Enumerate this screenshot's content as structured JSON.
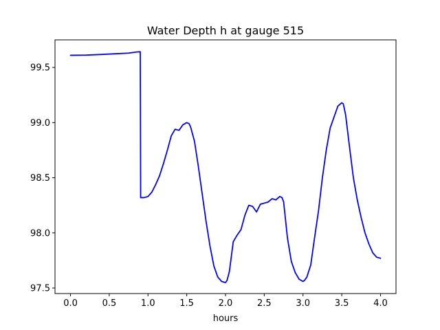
{
  "chart_data": {
    "type": "line",
    "title": "Water Depth h at gauge 515",
    "xlabel": "hours",
    "ylabel": "",
    "xlim": [
      -0.2,
      4.2
    ],
    "ylim": [
      97.45,
      99.75
    ],
    "xticks": [
      0.0,
      0.5,
      1.0,
      1.5,
      2.0,
      2.5,
      3.0,
      3.5,
      4.0
    ],
    "xtick_labels": [
      "0.0",
      "0.5",
      "1.0",
      "1.5",
      "2.0",
      "2.5",
      "3.0",
      "3.5",
      "4.0"
    ],
    "yticks": [
      97.5,
      98.0,
      98.5,
      99.0,
      99.5
    ],
    "ytick_labels": [
      "97.5",
      "98.0",
      "98.5",
      "99.0",
      "99.5"
    ],
    "grid": false,
    "series": [
      {
        "color": "#0000ff",
        "x": [
          0.0,
          0.2,
          0.4,
          0.6,
          0.75,
          0.85,
          0.9,
          0.905,
          0.95,
          1.0,
          1.05,
          1.1,
          1.15,
          1.2,
          1.25,
          1.3,
          1.35,
          1.4,
          1.45,
          1.5,
          1.53,
          1.55,
          1.6,
          1.65,
          1.7,
          1.75,
          1.8,
          1.85,
          1.9,
          1.95,
          2.0,
          2.02,
          2.05,
          2.1,
          2.15,
          2.2,
          2.25,
          2.3,
          2.35,
          2.4,
          2.45,
          2.5,
          2.55,
          2.6,
          2.65,
          2.7,
          2.73,
          2.75,
          2.8,
          2.85,
          2.9,
          2.95,
          3.0,
          3.02,
          3.05,
          3.1,
          3.15,
          3.2,
          3.25,
          3.3,
          3.35,
          3.4,
          3.45,
          3.5,
          3.52,
          3.55,
          3.6,
          3.65,
          3.7,
          3.75,
          3.8,
          3.85,
          3.9,
          3.95,
          4.0
        ],
        "values": [
          99.61,
          99.612,
          99.618,
          99.625,
          99.63,
          99.64,
          99.642,
          98.32,
          98.32,
          98.33,
          98.37,
          98.44,
          98.52,
          98.63,
          98.75,
          98.88,
          98.94,
          98.93,
          98.98,
          99.0,
          98.99,
          98.96,
          98.83,
          98.6,
          98.35,
          98.1,
          97.88,
          97.7,
          97.6,
          97.56,
          97.55,
          97.57,
          97.65,
          97.92,
          97.98,
          98.03,
          98.16,
          98.25,
          98.24,
          98.19,
          98.26,
          98.27,
          98.28,
          98.31,
          98.3,
          98.33,
          98.32,
          98.28,
          97.95,
          97.74,
          97.64,
          97.58,
          97.56,
          97.57,
          97.6,
          97.71,
          97.96,
          98.2,
          98.5,
          98.75,
          98.95,
          99.05,
          99.15,
          99.18,
          99.17,
          99.07,
          98.78,
          98.5,
          98.3,
          98.14,
          98.0,
          97.9,
          97.82,
          97.78,
          97.77
        ]
      }
    ]
  }
}
